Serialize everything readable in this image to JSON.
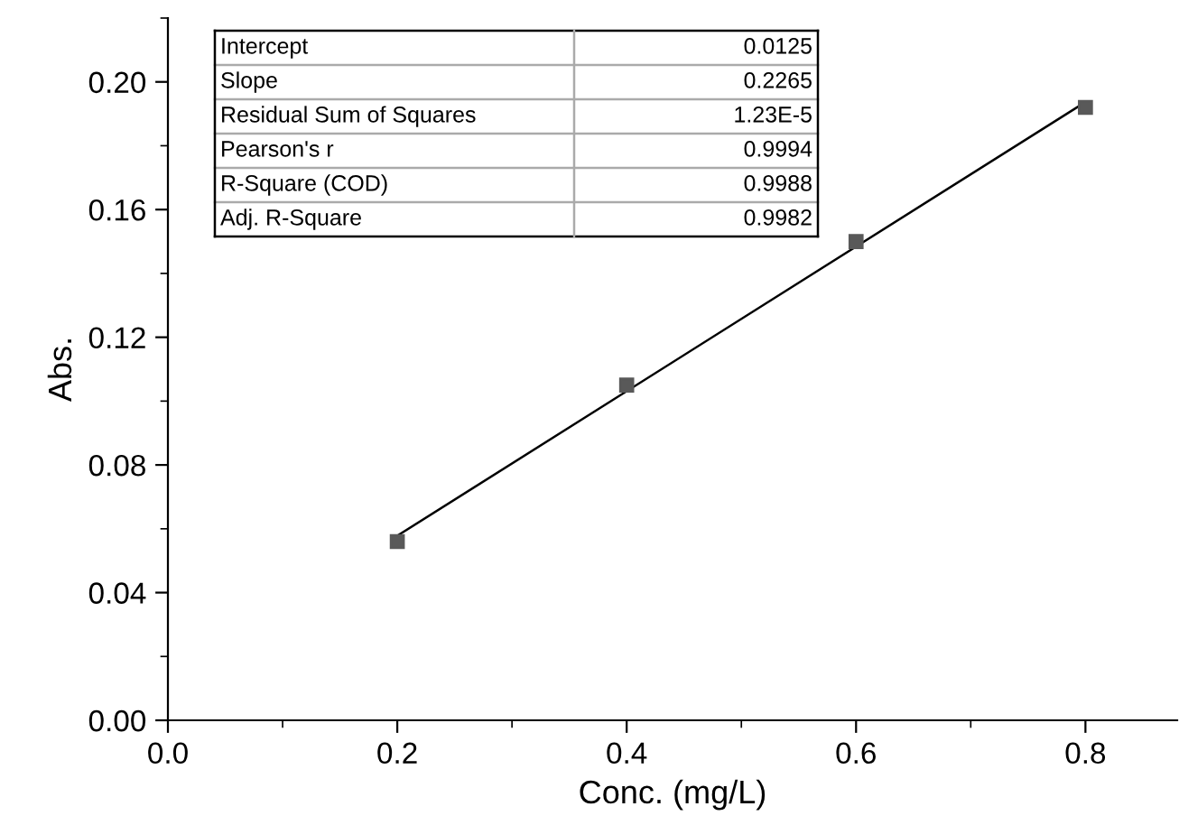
{
  "chart_data": {
    "type": "scatter",
    "xlabel": "Conc. (mg/L)",
    "ylabel": "Abs.",
    "xlim": [
      0,
      0.88
    ],
    "xticks": [
      {
        "value": 0,
        "label": "0.0"
      },
      0.2,
      0.4,
      0.6,
      0.8
    ],
    "ylim": [
      0,
      0.22
    ],
    "yticks": [
      {
        "value": 0,
        "label": "0.00"
      },
      0.04,
      0.08,
      0.12,
      0.16,
      {
        "value": 0.2,
        "label": "0.20"
      }
    ],
    "grid": false,
    "legend": false,
    "series": [
      {
        "marker": "square",
        "color": "#595959",
        "x": [
          0.2,
          0.4,
          0.6,
          0.8
        ],
        "values": [
          0.056,
          0.105,
          0.15,
          0.192
        ]
      },
      {
        "type": "line",
        "marker": "none",
        "color": "#000000",
        "x": [
          0.2,
          0.8
        ],
        "values": [
          0.0578,
          0.1937
        ]
      }
    ],
    "annotations": [
      "Intercept",
      "0.0125",
      "Slope",
      "0.2265",
      "Residual Sum of Squares",
      "1.23E-5",
      "Pearson's r",
      "0.9994",
      "R-Square (COD)",
      "0.9988",
      "Adj. R-Square",
      "0.9982"
    ]
  }
}
